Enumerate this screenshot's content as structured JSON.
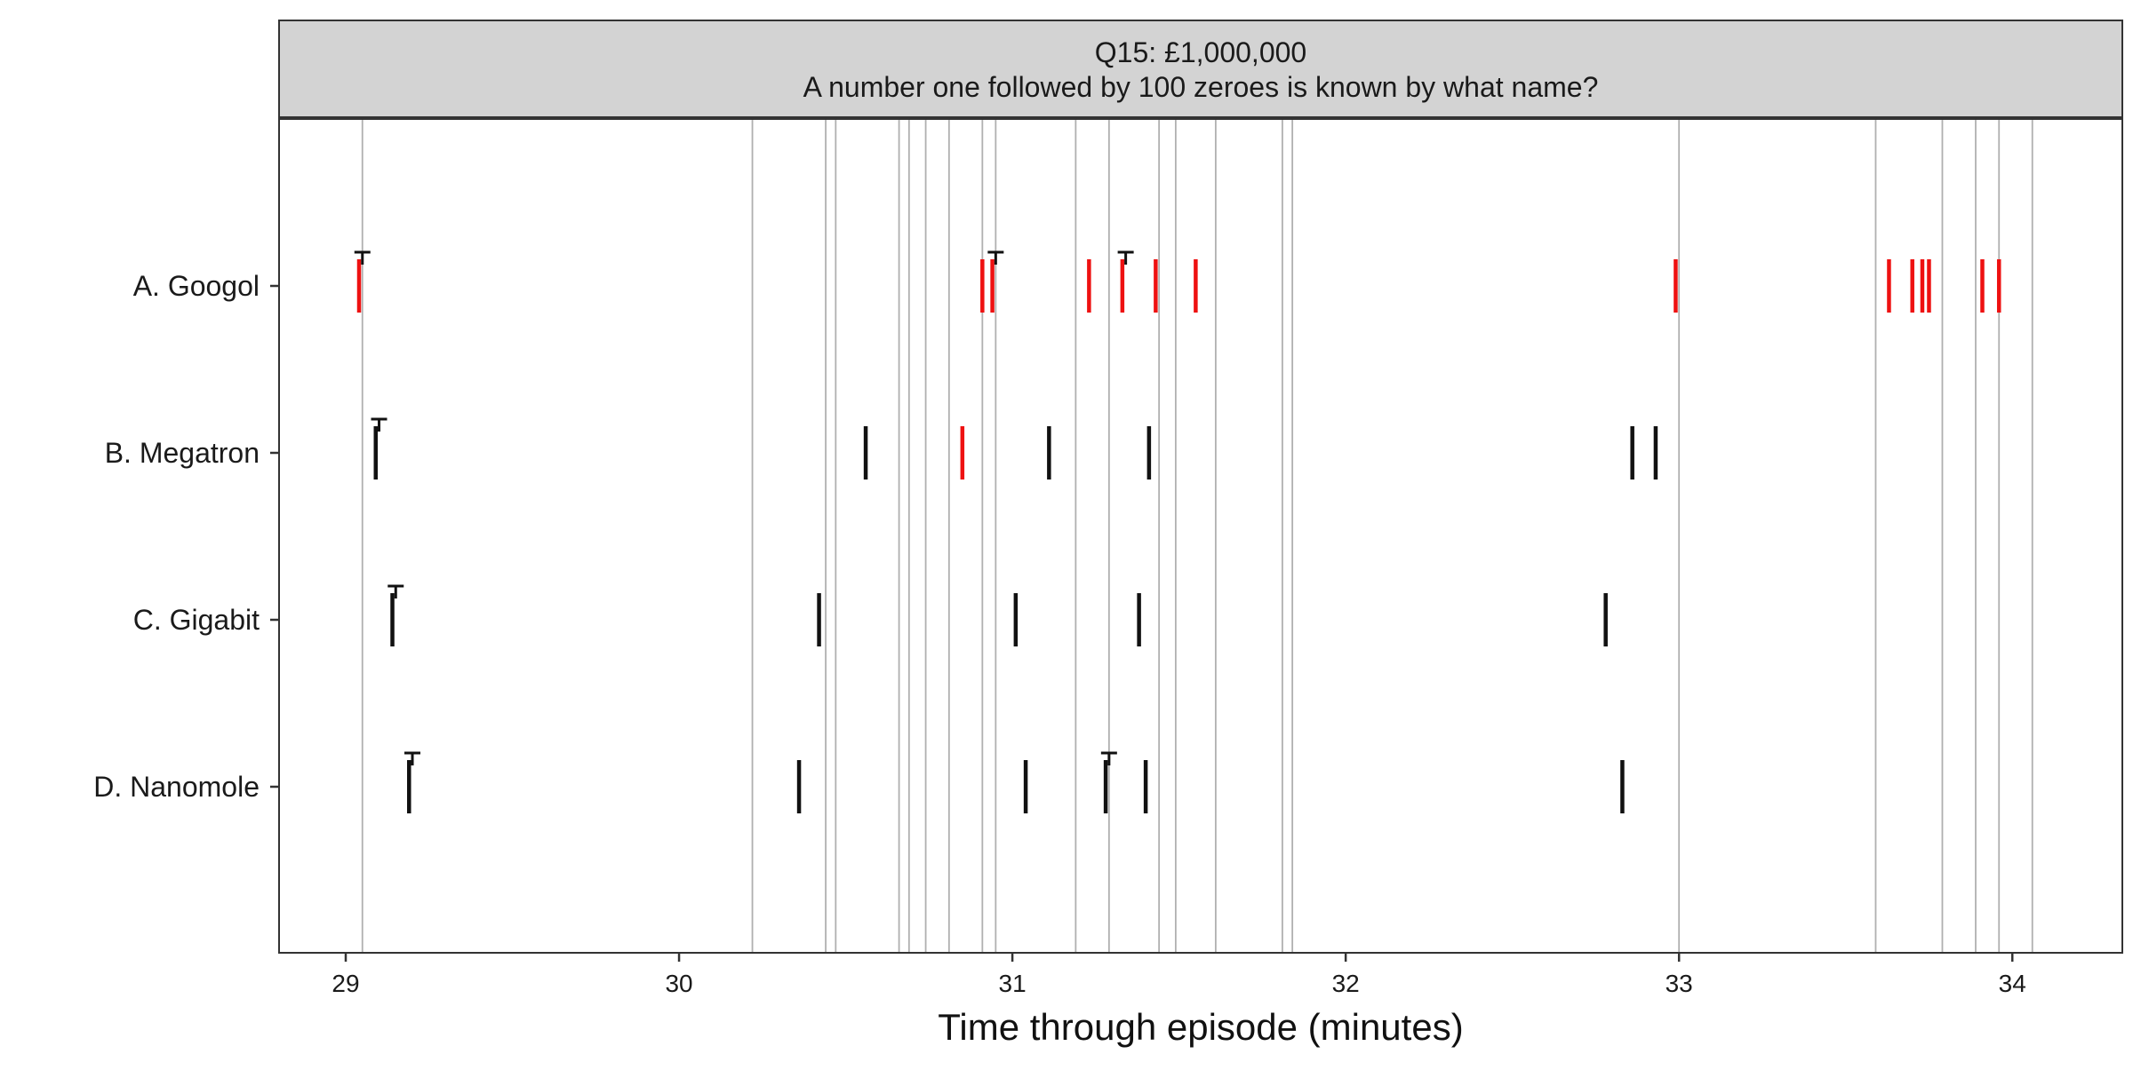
{
  "chart_data": {
    "type": "timeline-rug",
    "strip": {
      "title_line1": "Q15: £1,000,000",
      "title_line2": "A number one followed by 100 zeroes is known by what name?"
    },
    "xlabel": "Time through episode (minutes)",
    "xlim": [
      28.8,
      34.33
    ],
    "x_ticks": [
      29,
      30,
      31,
      32,
      33,
      34
    ],
    "categories": [
      "A. Googol",
      "B. Megatron",
      "C. Gigabit",
      "D. Nanomole"
    ],
    "vertical_reference_lines": [
      29.05,
      30.22,
      30.44,
      30.47,
      30.66,
      30.69,
      30.74,
      30.81,
      30.91,
      30.95,
      31.19,
      31.29,
      31.44,
      31.49,
      31.61,
      31.81,
      31.84,
      33.0,
      33.59,
      33.79,
      33.89,
      33.96,
      34.06
    ],
    "marks": [
      {
        "category": "A. Googol",
        "x": 29.04,
        "color": "red"
      },
      {
        "category": "A. Googol",
        "x": 30.91,
        "color": "red"
      },
      {
        "category": "A. Googol",
        "x": 30.94,
        "color": "red"
      },
      {
        "category": "A. Googol",
        "x": 31.23,
        "color": "red"
      },
      {
        "category": "A. Googol",
        "x": 31.33,
        "color": "red"
      },
      {
        "category": "A. Googol",
        "x": 31.43,
        "color": "red"
      },
      {
        "category": "A. Googol",
        "x": 31.55,
        "color": "red"
      },
      {
        "category": "A. Googol",
        "x": 32.99,
        "color": "red"
      },
      {
        "category": "A. Googol",
        "x": 33.63,
        "color": "red"
      },
      {
        "category": "A. Googol",
        "x": 33.7,
        "color": "red"
      },
      {
        "category": "A. Googol",
        "x": 33.73,
        "color": "red"
      },
      {
        "category": "A. Googol",
        "x": 33.75,
        "color": "red"
      },
      {
        "category": "A. Googol",
        "x": 33.91,
        "color": "red"
      },
      {
        "category": "A. Googol",
        "x": 33.96,
        "color": "red"
      },
      {
        "category": "B. Megatron",
        "x": 29.09,
        "color": "black"
      },
      {
        "category": "B. Megatron",
        "x": 30.56,
        "color": "black"
      },
      {
        "category": "B. Megatron",
        "x": 30.85,
        "color": "red"
      },
      {
        "category": "B. Megatron",
        "x": 31.11,
        "color": "black"
      },
      {
        "category": "B. Megatron",
        "x": 31.41,
        "color": "black"
      },
      {
        "category": "B. Megatron",
        "x": 32.86,
        "color": "black"
      },
      {
        "category": "B. Megatron",
        "x": 32.93,
        "color": "black"
      },
      {
        "category": "C. Gigabit",
        "x": 29.14,
        "color": "black"
      },
      {
        "category": "C. Gigabit",
        "x": 30.42,
        "color": "black"
      },
      {
        "category": "C. Gigabit",
        "x": 31.01,
        "color": "black"
      },
      {
        "category": "C. Gigabit",
        "x": 31.38,
        "color": "black"
      },
      {
        "category": "C. Gigabit",
        "x": 32.78,
        "color": "black"
      },
      {
        "category": "D. Nanomole",
        "x": 29.19,
        "color": "black"
      },
      {
        "category": "D. Nanomole",
        "x": 30.36,
        "color": "black"
      },
      {
        "category": "D. Nanomole",
        "x": 31.04,
        "color": "black"
      },
      {
        "category": "D. Nanomole",
        "x": 31.28,
        "color": "black"
      },
      {
        "category": "D. Nanomole",
        "x": 31.4,
        "color": "black"
      },
      {
        "category": "D. Nanomole",
        "x": 32.83,
        "color": "black"
      }
    ],
    "t_markers": [
      {
        "category": "A. Googol",
        "x": 29.05
      },
      {
        "category": "A. Googol",
        "x": 30.95
      },
      {
        "category": "A. Googol",
        "x": 31.34
      },
      {
        "category": "B. Megatron",
        "x": 29.1
      },
      {
        "category": "C. Gigabit",
        "x": 29.15
      },
      {
        "category": "D. Nanomole",
        "x": 29.2
      },
      {
        "category": "D. Nanomole",
        "x": 31.29
      }
    ],
    "colors": {
      "red": "#ee1111",
      "black": "#111111",
      "strip_fill": "#d3d3d3",
      "reference_line": "#b0b0b0"
    },
    "grid": false
  }
}
